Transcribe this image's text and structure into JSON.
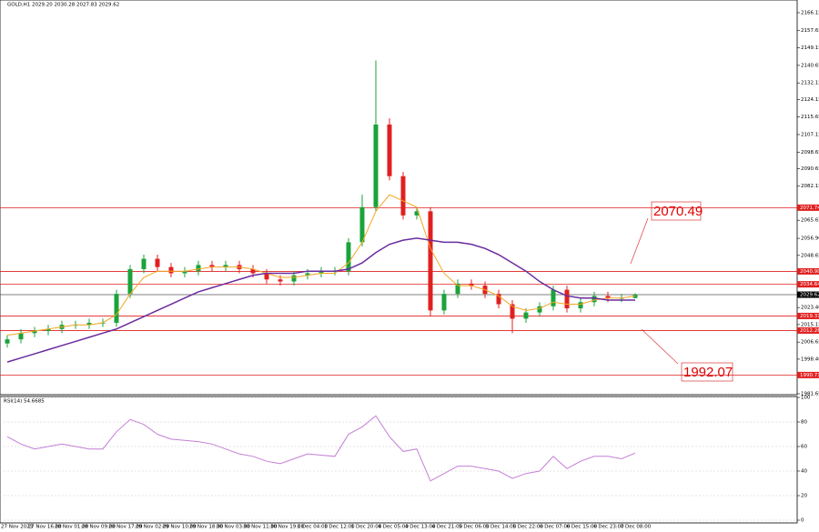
{
  "chart_data": [
    {
      "type": "candlestick",
      "title": "GOLD,H1  2029.20 2030.28 2027.83 2029.62",
      "ylim": [
        1981.2,
        2172.3
      ],
      "yticks": [
        2166.15,
        2157.65,
        2149.15,
        2140.65,
        2132.15,
        2124.15,
        2115.65,
        2107.15,
        2098.65,
        2090.65,
        2082.15,
        2065.65,
        {
          "value": 2056.9,
          "label": "2056.90"
        },
        2048.65,
        {
          "value": 2023.4,
          "label": "2023.40"
        },
        2015.15,
        2006.65,
        {
          "value": 1998.4,
          "label": "1998.40"
        },
        1981.65
      ],
      "open": [
        2006,
        2008,
        2011,
        2012,
        2013,
        2015,
        2015,
        2016,
        2016,
        2030,
        2042,
        2047,
        2043,
        2040,
        2041,
        2044,
        2043,
        2044,
        2042,
        2040,
        2037,
        2036,
        2039,
        2040,
        2041,
        2041,
        2055,
        2072,
        2112,
        2087,
        2068,
        2070,
        2022,
        2030,
        2035,
        2034,
        2030,
        2025,
        2018,
        2021,
        2024,
        2032,
        2023,
        2026,
        2029,
        2028,
        2028
      ],
      "high": [
        2010,
        2013,
        2014,
        2015,
        2017,
        2017,
        2018,
        2018,
        2032,
        2044,
        2049,
        2049,
        2045,
        2043,
        2046,
        2046,
        2046,
        2046,
        2044,
        2042,
        2039,
        2041,
        2042,
        2043,
        2043,
        2057,
        2078,
        2143,
        2115,
        2089,
        2072,
        2072,
        2032,
        2037,
        2037,
        2036,
        2032,
        2027,
        2023,
        2026,
        2034,
        2034,
        2028,
        2031,
        2031,
        2030,
        2030.28
      ],
      "low": [
        2004,
        2006,
        2009,
        2010,
        2011,
        2013,
        2013,
        2014,
        2014,
        2028,
        2040,
        2041,
        2038,
        2038,
        2039,
        2041,
        2041,
        2040,
        2038,
        2035,
        2034,
        2034,
        2037,
        2038,
        2039,
        2039,
        2053,
        2070,
        2085,
        2066,
        2066,
        2019,
        2020,
        2028,
        2032,
        2028,
        2023,
        2011,
        2016,
        2019,
        2022,
        2021,
        2021,
        2024,
        2026,
        2026,
        2027.83
      ],
      "close": [
        2008,
        2011,
        2012,
        2013,
        2015,
        2015,
        2016,
        2016,
        2030,
        2042,
        2047,
        2043,
        2040,
        2041,
        2044,
        2043,
        2044,
        2042,
        2040,
        2037,
        2036,
        2039,
        2040,
        2041,
        2041,
        2055,
        2072,
        2112,
        2087,
        2068,
        2070,
        2022,
        2030,
        2035,
        2034,
        2030,
        2025,
        2018,
        2021,
        2024,
        2032,
        2023,
        2026,
        2029,
        2028,
        2028,
        2029.62
      ],
      "up_color": "#1aa33a",
      "down_color": "#e02020",
      "series": [
        {
          "color": "#f5a623",
          "values": [
            2010,
            2011,
            2012,
            2013,
            2014,
            2015,
            2015,
            2016,
            2020,
            2030,
            2038,
            2041,
            2041,
            2041,
            2042,
            2043,
            2043,
            2043,
            2042,
            2040,
            2038,
            2038,
            2039,
            2040,
            2040,
            2045,
            2055,
            2070,
            2078,
            2075,
            2072,
            2052,
            2040,
            2034,
            2034,
            2032,
            2029,
            2024,
            2022,
            2023,
            2026,
            2025,
            2025,
            2027,
            2028,
            2028,
            2029
          ]
        },
        {
          "color": "#6a2c9e",
          "values": [
            1997,
            1999,
            2001,
            2003,
            2005,
            2007,
            2009,
            2011,
            2013,
            2016,
            2019,
            2022,
            2025,
            2028,
            2031,
            2033,
            2035,
            2037,
            2039,
            2040,
            2040,
            2040,
            2041,
            2041,
            2041,
            2042,
            2045,
            2050,
            2054,
            2056,
            2057,
            2056,
            2055,
            2055,
            2054,
            2052,
            2049,
            2045,
            2041,
            2036,
            2032,
            2029,
            2028,
            2028,
            2027,
            2027,
            2027
          ]
        }
      ],
      "levels": [
        2071.74,
        {
          "value": 2040.9,
          "label": "2040.90"
        },
        2034.64,
        2019.31,
        2012.26,
        1990.71
      ],
      "level_color": "#e02020",
      "current_price": 2029.62,
      "annotations": [
        "2070.49",
        "1992.07"
      ],
      "x_labels": [
        "27 Nov 2023",
        "27 Nov 16:00",
        "28 Nov 01:00",
        "28 Nov 09:00",
        "28 Nov 17:00",
        "29 Nov 02:00",
        "29 Nov 10:00",
        "29 Nov 18:00",
        "30 Nov 03:00",
        "30 Nov 11:00",
        "30 Nov 19:00",
        "1 Dec 04:00",
        "1 Dec 12:00",
        "1 Dec 20:00",
        "4 Dec 05:00",
        "4 Dec 13:00",
        "4 Dec 21:00",
        "5 Dec 06:00",
        "5 Dec 14:00",
        "5 Dec 22:00",
        "6 Dec 07:00",
        "6 Dec 15:00",
        "6 Dec 23:00",
        "7 Dec 08:00"
      ]
    },
    {
      "type": "line",
      "title": "RSI(14) 54.6685",
      "ylim": [
        0,
        100
      ],
      "yticks": [
        100,
        80,
        60,
        40,
        20,
        0
      ],
      "color": "#c47fd6",
      "values": [
        68,
        62,
        58,
        60,
        62,
        60,
        58,
        58,
        72,
        82,
        78,
        70,
        66,
        65,
        64,
        62,
        58,
        54,
        52,
        48,
        46,
        50,
        54,
        53,
        52,
        70,
        76,
        85,
        68,
        56,
        58,
        32,
        38,
        44,
        44,
        42,
        40,
        34,
        38,
        40,
        52,
        42,
        48,
        52,
        52,
        50,
        54.67
      ]
    }
  ]
}
